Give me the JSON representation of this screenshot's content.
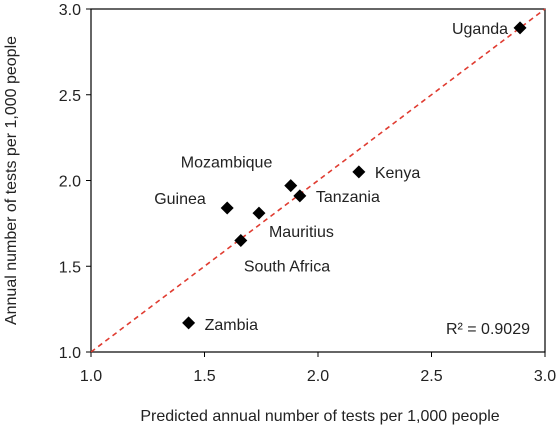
{
  "chart_data": {
    "type": "scatter",
    "title": "",
    "xlabel": "Predicted annual number of tests per 1,000 people",
    "ylabel": "Annual number of tests per 1,000 people",
    "xlim": [
      1.0,
      3.0
    ],
    "ylim": [
      1.0,
      3.0
    ],
    "xticks": [
      "1.0",
      "1.5",
      "2.0",
      "2.5",
      "3.0"
    ],
    "yticks": [
      "1.0",
      "1.5",
      "2.0",
      "2.5",
      "3.0"
    ],
    "grid": false,
    "legend": "none",
    "reference_line": {
      "from": [
        1.0,
        1.0
      ],
      "to": [
        3.0,
        3.0
      ],
      "style": "dashed",
      "color": "#e03c31"
    },
    "annotation": "R² = 0.9029",
    "marker": {
      "shape": "diamond",
      "color": "#000000"
    },
    "points": [
      {
        "label": "Uganda",
        "x": 2.89,
        "y": 2.89
      },
      {
        "label": "Kenya",
        "x": 2.18,
        "y": 2.05
      },
      {
        "label": "Mozambique",
        "x": 1.88,
        "y": 1.97
      },
      {
        "label": "Tanzania",
        "x": 1.92,
        "y": 1.91
      },
      {
        "label": "Guinea",
        "x": 1.6,
        "y": 1.84
      },
      {
        "label": "Mauritius",
        "x": 1.74,
        "y": 1.81
      },
      {
        "label": "South Africa",
        "x": 1.66,
        "y": 1.65
      },
      {
        "label": "Zambia",
        "x": 1.43,
        "y": 1.17
      }
    ]
  }
}
